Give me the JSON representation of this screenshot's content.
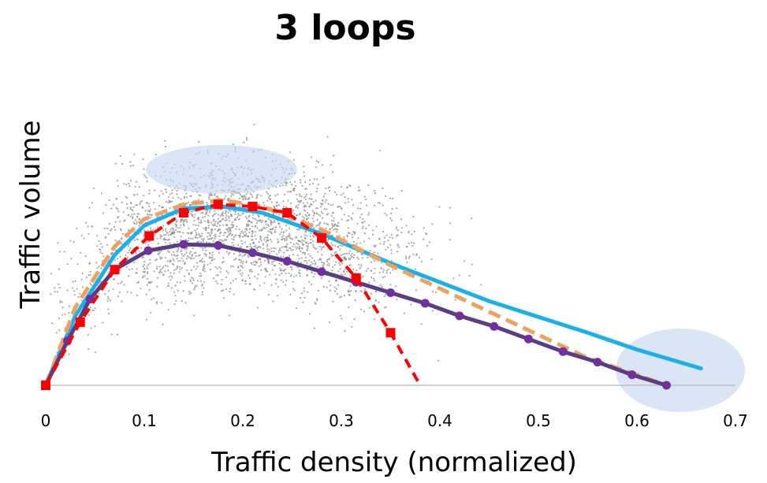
{
  "chart_data": {
    "type": "scatter",
    "title": "3 loops",
    "xlabel": "Traffic density (normalized)",
    "ylabel": "Traffic volume",
    "xlim": [
      0,
      0.7
    ],
    "ylim": [
      0,
      1
    ],
    "x_ticks": [
      "0",
      "0.1",
      "0.2",
      "0.3",
      "0.4",
      "0.5",
      "0.6",
      "0.7"
    ],
    "grid": false,
    "legend": "none",
    "scatter_points": "dense cloud of grey observations, mostly x 0.05–0.45",
    "series": [
      {
        "style": "solid-light-blue",
        "color": "#1ab0ea",
        "x": [
          0,
          0.03,
          0.07,
          0.1,
          0.14,
          0.18,
          0.22,
          0.28,
          0.35,
          0.45,
          0.55,
          0.6,
          0.665
        ],
        "y": [
          0,
          0.33,
          0.62,
          0.76,
          0.84,
          0.85,
          0.82,
          0.72,
          0.58,
          0.4,
          0.25,
          0.17,
          0.08
        ]
      },
      {
        "style": "dashed-orange",
        "color": "#f0a060",
        "x": [
          0,
          0.03,
          0.07,
          0.1,
          0.14,
          0.18,
          0.22,
          0.28,
          0.35,
          0.45,
          0.55,
          0.6,
          0.63
        ],
        "y": [
          0,
          0.37,
          0.66,
          0.79,
          0.86,
          0.88,
          0.85,
          0.74,
          0.57,
          0.35,
          0.13,
          0.05,
          0.0
        ]
      },
      {
        "style": "solid-purple-with-circles",
        "color": "#5a3d85",
        "marker_color": "#7030a0",
        "x": [
          0,
          0.022,
          0.045,
          0.07,
          0.104,
          0.14,
          0.175,
          0.21,
          0.245,
          0.28,
          0.315,
          0.35,
          0.385,
          0.42,
          0.455,
          0.49,
          0.525,
          0.56,
          0.595,
          0.63
        ],
        "y": [
          0,
          0.21,
          0.41,
          0.55,
          0.64,
          0.67,
          0.665,
          0.63,
          0.59,
          0.54,
          0.49,
          0.44,
          0.39,
          0.33,
          0.28,
          0.22,
          0.16,
          0.11,
          0.05,
          0.0
        ]
      },
      {
        "style": "dashed-red-with-squares",
        "color": "#ff0000",
        "x": [
          0,
          0.035,
          0.07,
          0.105,
          0.14,
          0.175,
          0.21,
          0.245,
          0.28,
          0.315,
          0.35,
          0.38
        ],
        "y": [
          0,
          0.3,
          0.55,
          0.71,
          0.82,
          0.86,
          0.85,
          0.82,
          0.7,
          0.51,
          0.25,
          0.0
        ]
      }
    ]
  }
}
